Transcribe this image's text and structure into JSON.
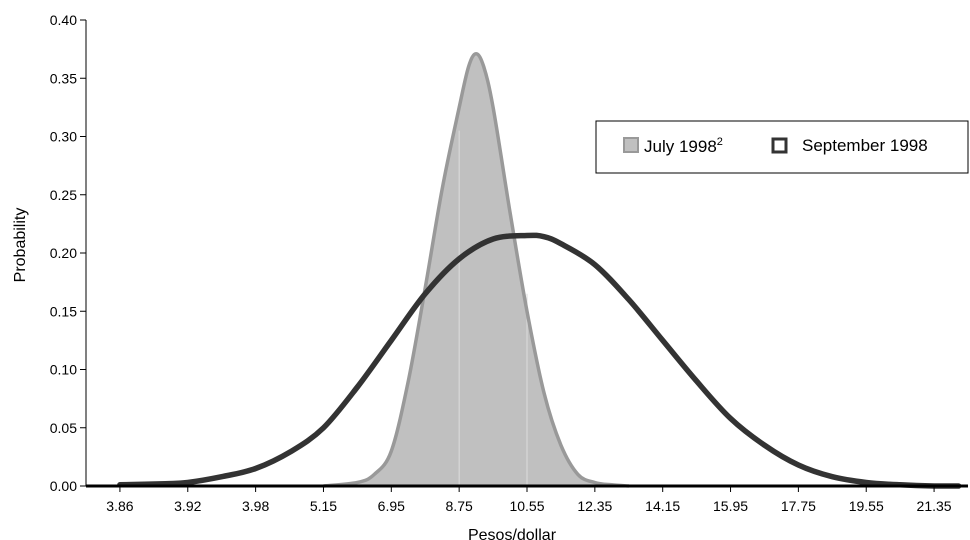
{
  "chart_data": {
    "type": "area",
    "xlabel": "Pesos/dollar",
    "ylabel": "Probability",
    "ylim": [
      0,
      0.4
    ],
    "yticks": [
      "0.00",
      "0.05",
      "0.10",
      "0.15",
      "0.20",
      "0.25",
      "0.30",
      "0.35",
      "0.40"
    ],
    "xtick_labels": [
      "3.86",
      "3.92",
      "3.98",
      "5.15",
      "6.95",
      "8.75",
      "10.55",
      "12.35",
      "14.15",
      "15.95",
      "17.75",
      "19.55",
      "21.35"
    ],
    "grid": false,
    "legend_position": "top-right",
    "series": [
      {
        "name": "July 1998",
        "name_superscript": "2",
        "style": "filled",
        "fill_color": "#c0c0c0",
        "line_color": "#999999",
        "x": [
          5.15,
          6.05,
          6.5,
          6.95,
          7.4,
          7.85,
          8.3,
          8.75,
          9.0,
          9.2,
          9.4,
          9.65,
          10.1,
          10.55,
          11.0,
          11.45,
          11.9,
          12.35,
          12.8,
          13.25
        ],
        "values": [
          0.0,
          0.003,
          0.01,
          0.03,
          0.09,
          0.17,
          0.255,
          0.325,
          0.36,
          0.371,
          0.36,
          0.325,
          0.235,
          0.15,
          0.08,
          0.035,
          0.01,
          0.003,
          0.001,
          0.0
        ]
      },
      {
        "name": "September 1998",
        "style": "line",
        "line_color": "#333333",
        "x": [
          3.86,
          3.9,
          3.92,
          3.95,
          3.98,
          4.6,
          5.15,
          6.05,
          6.95,
          7.85,
          8.75,
          9.65,
          10.55,
          11.0,
          11.45,
          12.35,
          13.25,
          14.15,
          15.05,
          15.95,
          16.85,
          17.75,
          18.65,
          19.55,
          20.45,
          21.35,
          22.0
        ],
        "values": [
          0.001,
          0.002,
          0.003,
          0.008,
          0.015,
          0.03,
          0.05,
          0.085,
          0.125,
          0.165,
          0.195,
          0.212,
          0.215,
          0.214,
          0.208,
          0.19,
          0.16,
          0.125,
          0.09,
          0.058,
          0.035,
          0.018,
          0.008,
          0.003,
          0.001,
          0.0,
          0.0
        ]
      }
    ]
  }
}
